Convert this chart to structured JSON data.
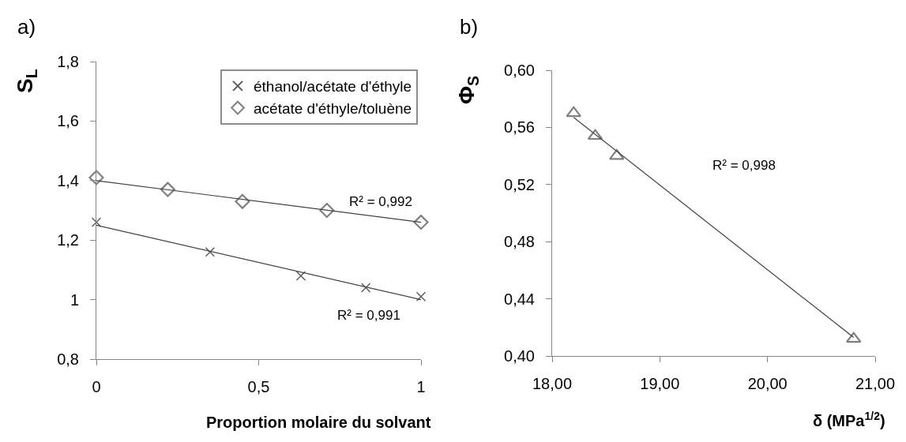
{
  "chart_data": [
    {
      "type": "scatter",
      "title": "a)",
      "xlabel": "Proportion molaire du solvant",
      "ylabel": "S$_{L}$",
      "xlim": [
        0,
        1
      ],
      "xticks": [
        0,
        {
          "value": 0.5,
          "label": "0,5"
        },
        1
      ],
      "ylim": [
        0.8,
        1.8
      ],
      "yticks": [
        {
          "value": 0.8,
          "label": "0,8"
        },
        1,
        {
          "value": 1.2,
          "label": "1,2"
        },
        {
          "value": 1.4,
          "label": "1,4"
        },
        {
          "value": 1.6,
          "label": "1,6"
        },
        {
          "value": 1.8,
          "label": "1,8"
        }
      ],
      "grid": false,
      "legend": "top right",
      "annotations": [
        "R² = 0,992",
        "R² = 0,991"
      ],
      "series": [
        {
          "name": "éthanol/acétate d'éthyle",
          "color": "#595959",
          "marker": "cross",
          "x": [
            0,
            0.35,
            0.63,
            0.83,
            1
          ],
          "values": [
            1.26,
            1.16,
            1.08,
            1.04,
            1.01
          ]
        },
        {
          "name": "acétate d'éthyle/toluène",
          "color": "#808080",
          "marker": "diamond",
          "x": [
            0,
            0.22,
            0.45,
            0.71,
            1
          ],
          "values": [
            1.41,
            1.37,
            1.33,
            1.3,
            1.26
          ]
        },
        {
          "type": "line",
          "color": "#404040",
          "x": [
            0,
            1
          ],
          "values": [
            1.25,
            1.0
          ]
        },
        {
          "type": "line",
          "color": "#404040",
          "x": [
            0,
            1
          ],
          "values": [
            1.4,
            1.26
          ]
        }
      ]
    },
    {
      "type": "scatter",
      "title": "b)",
      "xlabel": "δ (MPa$^{1/2}$)",
      "ylabel": "Φ$_{S}$",
      "xlim": [
        18,
        21
      ],
      "xticks": [
        {
          "value": 18,
          "label": "18,00"
        },
        {
          "value": 19,
          "label": "19,00"
        },
        {
          "value": 20,
          "label": "20,00"
        },
        {
          "value": 21,
          "label": "21,00"
        }
      ],
      "ylim": [
        0.4,
        0.6
      ],
      "yticks": [
        {
          "value": 0.4,
          "label": "0,40"
        },
        {
          "value": 0.44,
          "label": "0,44"
        },
        {
          "value": 0.48,
          "label": "0,48"
        },
        {
          "value": 0.52,
          "label": "0,52"
        },
        {
          "value": 0.56,
          "label": "0,56"
        },
        {
          "value": 0.6,
          "label": "0,60"
        }
      ],
      "grid": false,
      "legend": false,
      "annotations": [
        "R² = 0,998"
      ],
      "series": [
        {
          "color": "#808080",
          "marker": "triangle",
          "x": [
            18.2,
            18.4,
            18.6,
            20.8
          ],
          "values": [
            0.57,
            0.554,
            0.54,
            0.412
          ]
        },
        {
          "type": "line",
          "color": "#404040",
          "x": [
            18.2,
            20.8
          ],
          "values": [
            0.567,
            0.413
          ]
        }
      ]
    }
  ]
}
